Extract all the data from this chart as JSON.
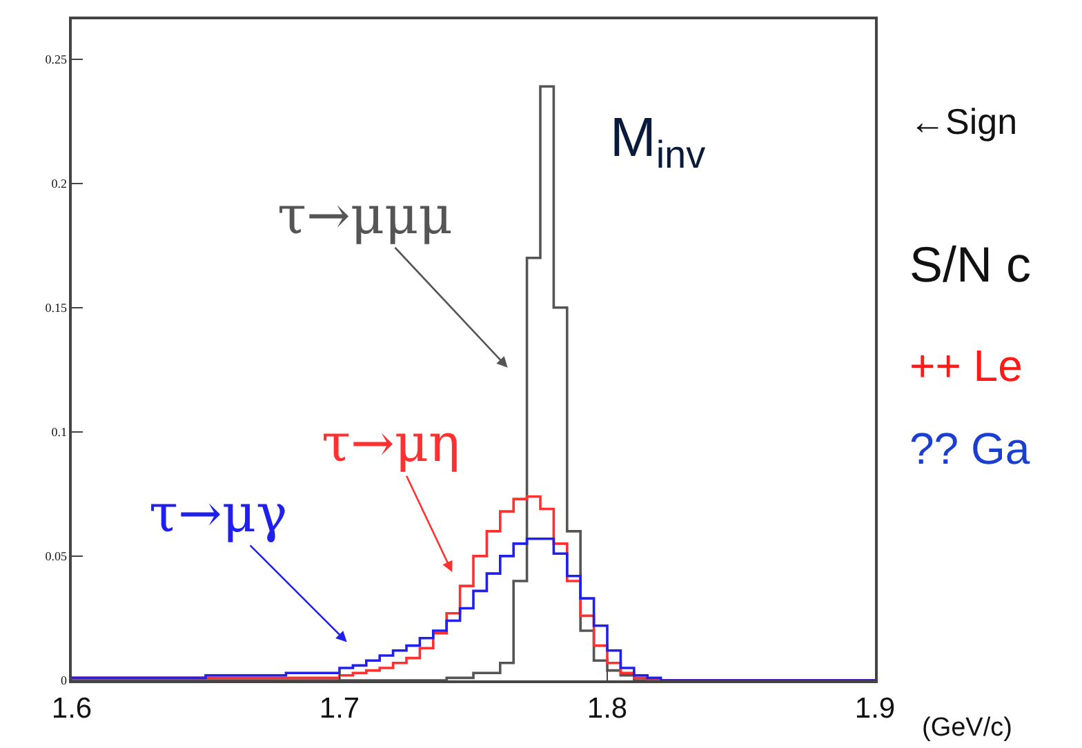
{
  "chart_data": {
    "type": "histogram",
    "xlabel": "(GeV/c)",
    "bins": [
      1.6,
      1.605,
      1.61,
      1.615,
      1.62,
      1.625,
      1.63,
      1.635,
      1.64,
      1.645,
      1.65,
      1.655,
      1.66,
      1.665,
      1.67,
      1.675,
      1.68,
      1.685,
      1.69,
      1.695,
      1.7,
      1.705,
      1.71,
      1.715,
      1.72,
      1.725,
      1.73,
      1.735,
      1.74,
      1.745,
      1.75,
      1.755,
      1.76,
      1.765,
      1.77,
      1.775,
      1.78,
      1.785,
      1.79,
      1.795,
      1.8,
      1.805,
      1.81,
      1.815,
      1.82,
      1.825,
      1.83,
      1.835,
      1.84,
      1.845,
      1.85,
      1.855,
      1.86,
      1.865,
      1.87,
      1.875,
      1.88,
      1.885,
      1.89,
      1.895,
      1.9
    ],
    "series": [
      {
        "name": "τ→μμμ",
        "color": "#555555",
        "values": [
          0,
          0,
          0,
          0,
          0,
          0,
          0,
          0,
          0,
          0,
          0,
          0,
          0,
          0,
          0,
          0,
          0,
          0,
          0,
          0,
          0,
          0,
          0,
          0,
          0,
          0,
          0,
          0,
          0.001,
          0.001,
          0.003,
          0.003,
          0.007,
          0.04,
          0.17,
          0.239,
          0.15,
          0.06,
          0.02,
          0.008,
          0.004,
          0.002,
          0,
          0,
          0,
          0,
          0,
          0,
          0,
          0,
          0,
          0,
          0,
          0,
          0,
          0,
          0,
          0,
          0,
          0
        ]
      },
      {
        "name": "τ→μη",
        "color": "#ff3030",
        "values": [
          0.001,
          0.001,
          0.001,
          0.001,
          0.001,
          0.001,
          0.001,
          0.001,
          0.001,
          0.001,
          0.001,
          0.001,
          0.001,
          0.001,
          0.001,
          0.001,
          0.001,
          0.001,
          0.001,
          0.001,
          0.002,
          0.003,
          0.004,
          0.005,
          0.007,
          0.009,
          0.013,
          0.019,
          0.027,
          0.038,
          0.05,
          0.06,
          0.068,
          0.073,
          0.074,
          0.069,
          0.055,
          0.04,
          0.026,
          0.014,
          0.007,
          0.003,
          0.001,
          0,
          0,
          0,
          0,
          0,
          0,
          0,
          0,
          0,
          0,
          0,
          0,
          0,
          0,
          0,
          0,
          0
        ]
      },
      {
        "name": "τ→μγ",
        "color": "#2020ee",
        "values": [
          0.001,
          0.001,
          0.001,
          0.001,
          0.001,
          0.001,
          0.001,
          0.001,
          0.001,
          0.001,
          0.002,
          0.002,
          0.002,
          0.002,
          0.002,
          0.002,
          0.003,
          0.003,
          0.003,
          0.003,
          0.005,
          0.006,
          0.008,
          0.01,
          0.012,
          0.014,
          0.017,
          0.02,
          0.024,
          0.029,
          0.036,
          0.043,
          0.05,
          0.055,
          0.057,
          0.057,
          0.051,
          0.042,
          0.033,
          0.022,
          0.012,
          0.005,
          0.002,
          0.001,
          0,
          0,
          0,
          0,
          0,
          0,
          0,
          0,
          0,
          0,
          0,
          0,
          0,
          0,
          0,
          0
        ]
      }
    ],
    "xlim": [
      1.6,
      1.9
    ],
    "xticks": [
      1.6,
      1.7,
      1.8,
      1.9
    ],
    "ylim": [
      0,
      0.266
    ],
    "yticks": [
      0,
      0.05,
      0.1,
      0.15,
      0.2,
      0.25
    ],
    "legend": false,
    "annotations": [
      "M$_{inv}$",
      "←Sign",
      "S/N c",
      "++ Le",
      "?? Ga"
    ]
  }
}
